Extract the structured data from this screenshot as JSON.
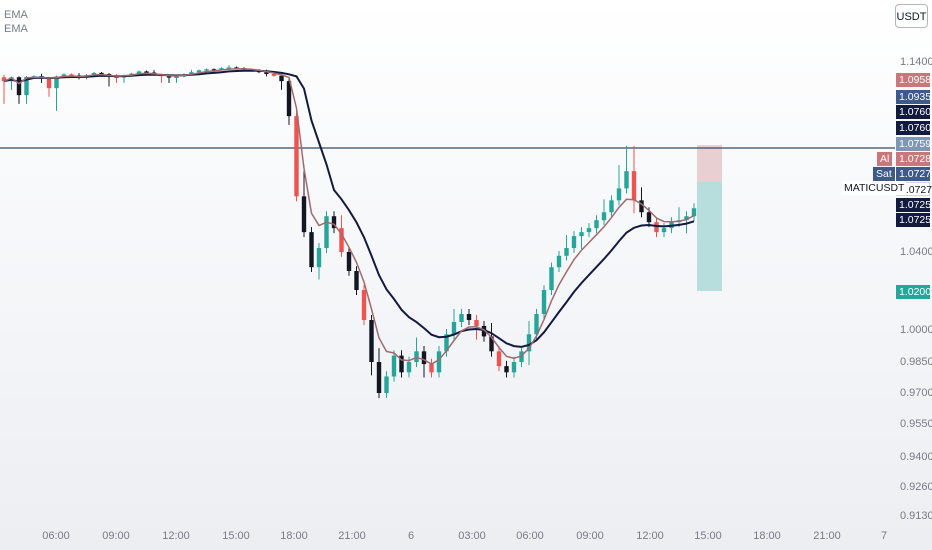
{
  "legend": {
    "items": [
      "EMA",
      "EMA"
    ]
  },
  "toolbar": {
    "currency": "USDT"
  },
  "symbol": "MATICUSDT",
  "colors": {
    "up": "#26a69a",
    "down": "#ef5350",
    "candle_dark": "#131722",
    "ema_fast": "#a06a6e",
    "ema_slow": "#131a3f",
    "hline": "#2e4a66",
    "stop_zone": "#e8cfd2",
    "target_zone": "#b7dedc"
  },
  "price_axis": {
    "ticks": [
      "1.1400",
      "1.0400",
      "1.0000",
      "0.9850",
      "0.9700",
      "0.9550",
      "0.9400",
      "0.9260",
      "0.9130"
    ],
    "badges": [
      {
        "value": "1.0958",
        "color": "#c9777a"
      },
      {
        "value": "1.0935",
        "color": "#3d5a8a"
      },
      {
        "value": "1.0760",
        "color": "#131a3f"
      },
      {
        "value": "1.0760",
        "color": "#131a3f"
      },
      {
        "value": "1.0759",
        "color": "#7f96b4"
      },
      {
        "value": "1.0728",
        "color": "#c9777a",
        "tag": "Al"
      },
      {
        "value": "1.0727",
        "color": "#3d5a8a",
        "tag": "Sat"
      },
      {
        "value": "1.0727",
        "color": "#ffffff"
      },
      {
        "value": "1.0725",
        "color": "#131a3f"
      },
      {
        "value": "1.0725",
        "color": "#131a3f"
      },
      {
        "value": "1.0200",
        "color": "#26a69a"
      }
    ]
  },
  "time_axis": {
    "ticks": [
      "06:00",
      "09:00",
      "12:00",
      "15:00",
      "18:00",
      "21:00",
      "6",
      "03:00",
      "06:00",
      "09:00",
      "12:00",
      "15:00",
      "18:00",
      "21:00",
      "7"
    ]
  },
  "chart_data": {
    "type": "candlestick",
    "symbol": "MATICUSDT",
    "x_axis": [
      "06:00",
      "09:00",
      "12:00",
      "15:00",
      "18:00",
      "21:00",
      "6",
      "03:00",
      "06:00",
      "09:00",
      "12:00",
      "15:00",
      "18:00",
      "21:00",
      "7"
    ],
    "y_axis_ticks": [
      1.14,
      1.04,
      1.0,
      0.985,
      0.97,
      0.955,
      0.94,
      0.926,
      0.913
    ],
    "horizontal_line": 1.0759,
    "position": {
      "entry": 1.0727,
      "stop": 1.0958,
      "target": 1.02
    },
    "close": [
      1.095,
      1.098,
      1.091,
      1.099,
      1.101,
      1.097,
      1.093,
      1.1,
      1.106,
      1.103,
      1.098,
      1.104,
      1.11,
      1.107,
      1.1,
      1.097,
      1.103,
      1.108,
      1.114,
      1.111,
      1.105,
      1.101,
      1.097,
      1.1,
      1.106,
      1.112,
      1.117,
      1.12,
      1.119,
      1.123,
      1.125,
      1.123,
      1.12,
      1.118,
      1.112,
      1.107,
      1.102,
      1.095,
      1.085,
      1.068,
      1.05,
      1.032,
      1.042,
      1.058,
      1.052,
      1.04,
      1.03,
      1.02,
      1.005,
      0.985,
      0.97,
      0.978,
      0.988,
      0.98,
      0.985,
      0.99,
      0.984,
      0.98,
      0.99,
      0.998,
      1.004,
      1.008,
      1.005,
      1.002,
      0.997,
      0.99,
      0.983,
      0.98,
      0.985,
      0.99,
      0.998,
      1.008,
      1.02,
      1.032,
      1.038,
      1.042,
      1.048,
      1.05,
      1.052,
      1.056,
      1.06,
      1.066,
      1.072,
      1.074,
      1.066,
      1.06,
      1.055,
      1.05,
      1.052,
      1.055,
      1.056,
      1.058,
      1.062
    ],
    "ema_fast_label": "EMA",
    "ema_slow_label": "EMA"
  }
}
